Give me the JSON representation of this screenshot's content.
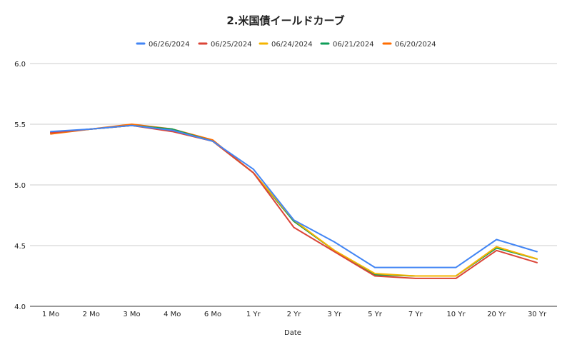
{
  "chart_data": {
    "type": "line",
    "title": "2.米国債イールドカーブ",
    "xlabel": "Date",
    "ylabel": "",
    "ylim": [
      4.0,
      6.0
    ],
    "yticks": [
      "6.0",
      "5.5",
      "5.0",
      "4.5",
      "4.0"
    ],
    "grid": true,
    "legend_position": "top",
    "categories": [
      "1 Mo",
      "2 Mo",
      "3 Mo",
      "4 Mo",
      "6 Mo",
      "1 Yr",
      "2 Yr",
      "3 Yr",
      "5 Yr",
      "7 Yr",
      "10 Yr",
      "20 Yr",
      "30 Yr"
    ],
    "series": [
      {
        "name": "06/26/2024",
        "color": "#4285f4",
        "values": [
          5.44,
          5.46,
          5.49,
          5.45,
          5.36,
          5.13,
          4.71,
          4.53,
          4.32,
          4.32,
          4.32,
          4.55,
          4.45
        ]
      },
      {
        "name": "06/25/2024",
        "color": "#db4437",
        "values": [
          5.43,
          5.46,
          5.49,
          5.44,
          5.36,
          5.1,
          4.65,
          4.45,
          4.25,
          4.23,
          4.23,
          4.46,
          4.36
        ]
      },
      {
        "name": "06/24/2024",
        "color": "#f4b400",
        "values": [
          5.43,
          5.46,
          5.49,
          5.45,
          5.36,
          5.1,
          4.71,
          4.46,
          4.27,
          4.25,
          4.25,
          4.49,
          4.39
        ]
      },
      {
        "name": "06/21/2024",
        "color": "#0f9d58",
        "values": [
          5.43,
          5.46,
          5.49,
          5.46,
          5.36,
          5.1,
          4.7,
          4.46,
          4.26,
          4.25,
          4.25,
          4.48,
          4.39
        ]
      },
      {
        "name": "06/20/2024",
        "color": "#ff6d01",
        "values": [
          5.42,
          5.46,
          5.5,
          5.46,
          5.37,
          5.1,
          4.7,
          4.46,
          4.26,
          4.25,
          4.25,
          4.49,
          4.39
        ]
      }
    ]
  }
}
